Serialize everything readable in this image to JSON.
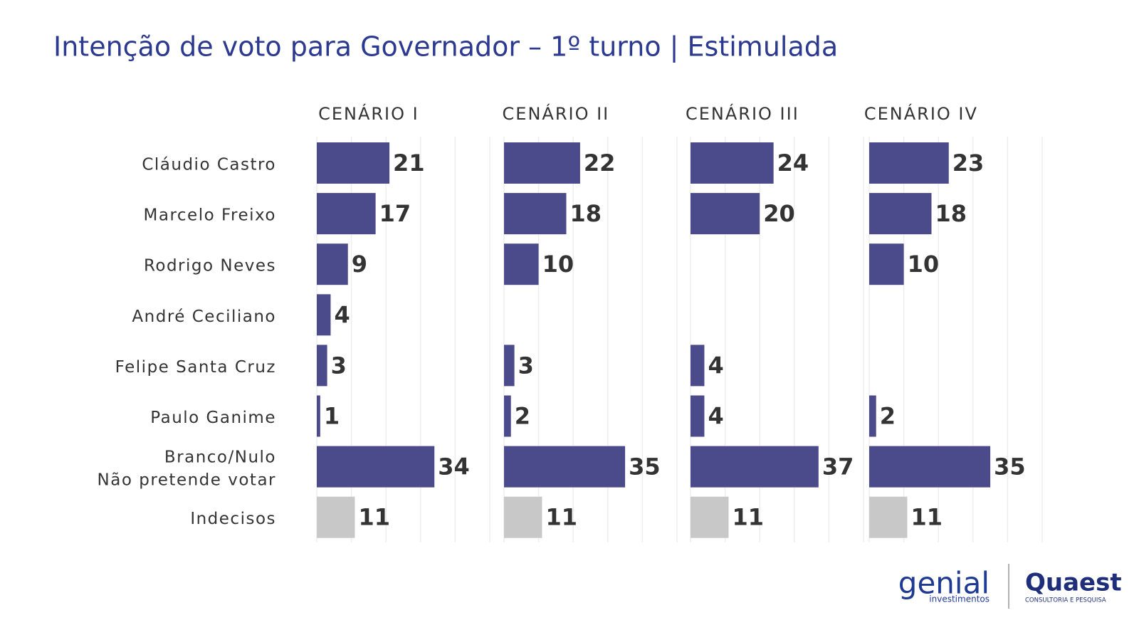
{
  "title": "Intenção de voto para Governador – 1º turno | Estimulada",
  "categories": [
    "Cláudio Castro",
    "Marcelo Freixo",
    "Rodrigo Neves",
    "André Ceciliano",
    "Felipe Santa Cruz",
    "Paulo Ganime",
    "Branco/Nulo\nNão pretende votar",
    "Indecisos"
  ],
  "colors": [
    "#4b4a8a",
    "#4b4a8a",
    "#4b4a8a",
    "#4b4a8a",
    "#4b4a8a",
    "#4b4a8a",
    "#4b4a8a",
    "#c8c8c8"
  ],
  "chart_data": [
    {
      "type": "bar",
      "title": "CENÁRIO I",
      "values": [
        21,
        17,
        9,
        4,
        3,
        1,
        34,
        11
      ],
      "xlim": [
        0,
        50
      ],
      "xticks": [
        0,
        10,
        20,
        30,
        40,
        50
      ],
      "grid": true
    },
    {
      "type": "bar",
      "title": "CENÁRIO II",
      "values": [
        22,
        18,
        10,
        null,
        3,
        2,
        35,
        11
      ],
      "xlim": [
        0,
        50
      ],
      "xticks": [
        0,
        10,
        20,
        30,
        40,
        50
      ],
      "grid": true
    },
    {
      "type": "bar",
      "title": "CENÁRIO III",
      "values": [
        24,
        20,
        null,
        null,
        4,
        4,
        37,
        11
      ],
      "xlim": [
        0,
        50
      ],
      "xticks": [
        0,
        10,
        20,
        30,
        40,
        50
      ],
      "grid": true
    },
    {
      "type": "bar",
      "title": "CENÁRIO IV",
      "values": [
        23,
        18,
        10,
        null,
        null,
        2,
        35,
        11
      ],
      "xlim": [
        0,
        50
      ],
      "xticks": [
        0,
        10,
        20,
        30,
        40,
        50
      ],
      "grid": true
    }
  ],
  "logos": {
    "left": "genial",
    "left_sub": "investimentos",
    "right": "Quaest",
    "right_sub": "CONSULTORIA E PESQUISA"
  }
}
